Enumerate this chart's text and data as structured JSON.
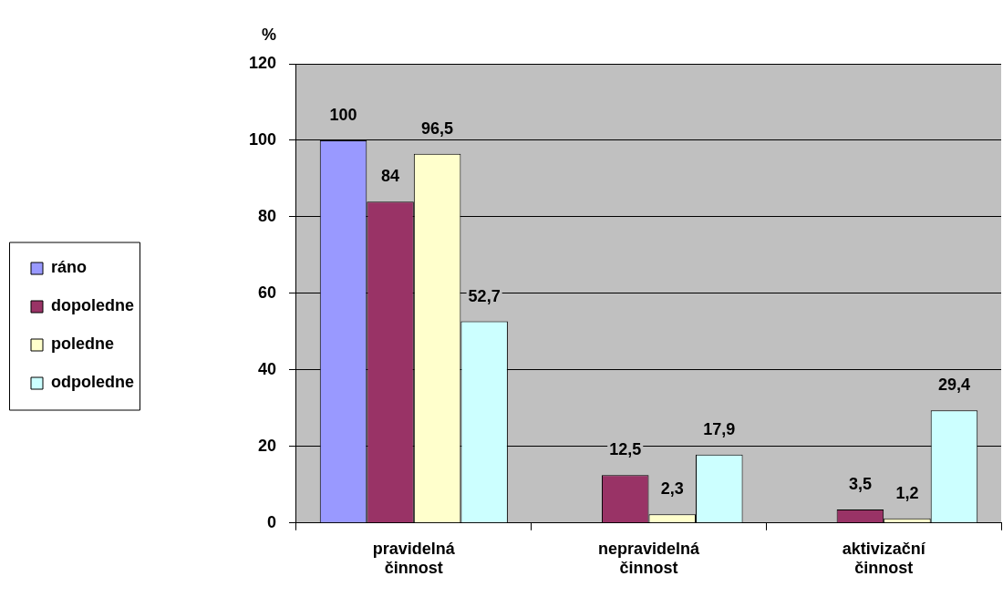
{
  "chart_data": {
    "type": "bar",
    "ylabel": "%",
    "categories": [
      "pravidelná činnost",
      "nepravidelná činnost",
      "aktivizační činnost"
    ],
    "series": [
      {
        "name": "ráno",
        "color": "#9999ff",
        "values": [
          100,
          null,
          null
        ],
        "value_labels": [
          "100",
          null,
          null
        ]
      },
      {
        "name": "dopoledne",
        "color": "#993366",
        "values": [
          84,
          12.5,
          3.5
        ],
        "value_labels": [
          "84",
          "12,5",
          "3,5"
        ]
      },
      {
        "name": "poledne",
        "color": "#ffffcc",
        "values": [
          96.5,
          2.3,
          1.2
        ],
        "value_labels": [
          "96,5",
          "2,3",
          "1,2"
        ]
      },
      {
        "name": "odpoledne",
        "color": "#ccffff",
        "values": [
          52.7,
          17.9,
          29.4
        ],
        "value_labels": [
          "52,7",
          "17,9",
          "29,4"
        ]
      }
    ],
    "ylim": [
      0,
      120
    ],
    "yticks": [
      0,
      20,
      40,
      60,
      80,
      100,
      120
    ],
    "grid": "y",
    "legend": "left"
  }
}
